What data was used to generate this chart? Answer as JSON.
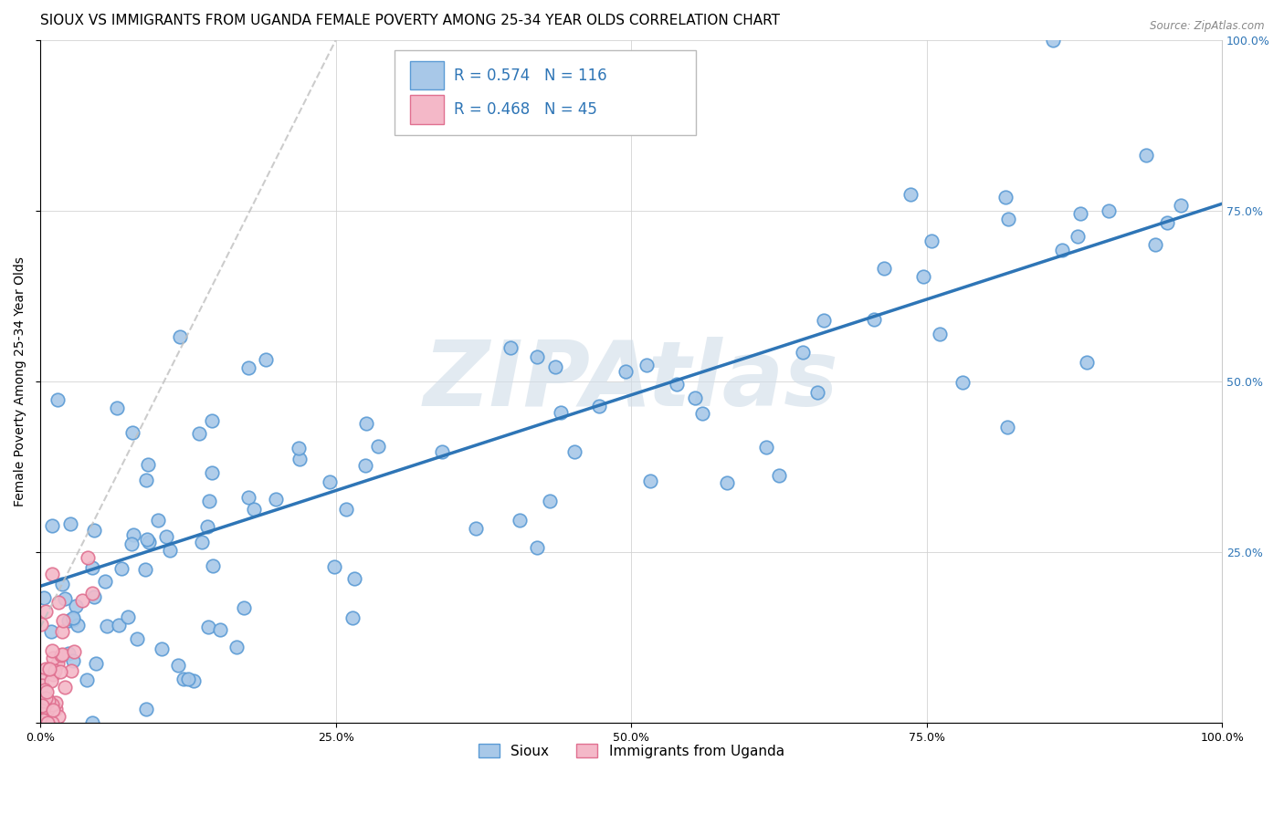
{
  "title": "SIOUX VS IMMIGRANTS FROM UGANDA FEMALE POVERTY AMONG 25-34 YEAR OLDS CORRELATION CHART",
  "source": "Source: ZipAtlas.com",
  "ylabel": "Female Poverty Among 25-34 Year Olds",
  "xlim": [
    0,
    1
  ],
  "ylim": [
    0,
    1
  ],
  "x_ticks": [
    0.0,
    0.25,
    0.5,
    0.75,
    1.0
  ],
  "y_ticks": [
    0.0,
    0.25,
    0.5,
    0.75,
    1.0
  ],
  "x_tick_labels": [
    "0.0%",
    "25.0%",
    "50.0%",
    "75.0%",
    "100.0%"
  ],
  "right_y_tick_labels": [
    "",
    "25.0%",
    "50.0%",
    "75.0%",
    "100.0%"
  ],
  "sioux_color": "#a8c8e8",
  "sioux_edge_color": "#5b9bd5",
  "uganda_color": "#f4b8c8",
  "uganda_edge_color": "#e07090",
  "sioux_R": 0.574,
  "sioux_N": 116,
  "uganda_R": 0.468,
  "uganda_N": 45,
  "legend_color": "#2e75b6",
  "watermark": "ZIPAtlas",
  "sioux_trend_color": "#2e75b6",
  "uganda_trend_color": "#c0c0c0",
  "sioux_trend_x": [
    0.0,
    1.0
  ],
  "sioux_trend_y": [
    0.2,
    0.76
  ],
  "uganda_trend_x": [
    0.0,
    0.25
  ],
  "uganda_trend_y": [
    0.14,
    1.0
  ],
  "background_color": "#ffffff",
  "grid_color": "#d0d0d0",
  "title_fontsize": 11,
  "axis_label_fontsize": 10,
  "tick_fontsize": 9,
  "legend_fontsize": 12,
  "watermark_color": "#d0dde8",
  "watermark_alpha": 0.6,
  "watermark_fontsize": 72,
  "sioux_seed": 42,
  "uganda_seed": 123
}
